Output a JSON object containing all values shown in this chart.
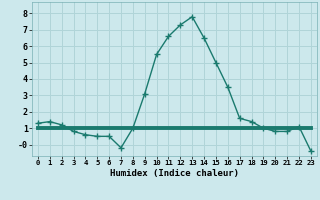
{
  "xlabel": "Humidex (Indice chaleur)",
  "background_color": "#cce8ec",
  "grid_color": "#b0d4d8",
  "line_color": "#1a7a6e",
  "xlim": [
    -0.5,
    23.5
  ],
  "ylim": [
    -0.7,
    8.7
  ],
  "xticks": [
    0,
    1,
    2,
    3,
    4,
    5,
    6,
    7,
    8,
    9,
    10,
    11,
    12,
    13,
    14,
    15,
    16,
    17,
    18,
    19,
    20,
    21,
    22,
    23
  ],
  "yticks": [
    0,
    1,
    2,
    3,
    4,
    5,
    6,
    7,
    8
  ],
  "ytick_labels": [
    "-0",
    "1",
    "2",
    "3",
    "4",
    "5",
    "6",
    "7",
    "8"
  ],
  "series1_x": [
    0,
    1,
    2,
    3,
    4,
    5,
    6,
    7,
    8,
    9,
    10,
    11,
    12,
    13,
    14,
    15,
    16,
    17,
    18,
    19,
    20,
    21,
    22,
    23
  ],
  "series1_y": [
    1.3,
    1.4,
    1.2,
    0.8,
    0.6,
    0.5,
    0.5,
    -0.2,
    1.0,
    3.1,
    5.5,
    6.6,
    7.3,
    7.8,
    6.5,
    5.0,
    3.5,
    1.6,
    1.4,
    1.0,
    0.8,
    0.8,
    1.1,
    -0.4
  ],
  "series2_x": [
    0,
    23
  ],
  "series2_y": [
    1.0,
    1.0
  ]
}
